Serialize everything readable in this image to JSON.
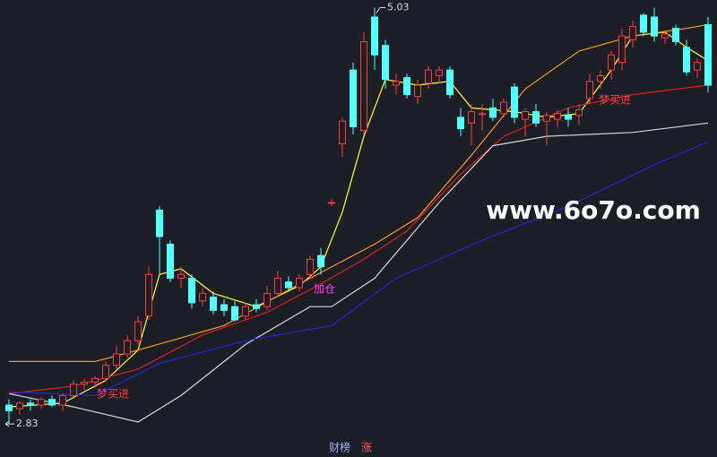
{
  "chart_data": {
    "type": "candlestick",
    "up_color": "#ff3c3c",
    "down_color": "#54ffff",
    "ylim": [
      2.75,
      5.07
    ],
    "max_label": 5.03,
    "min_label": 2.83,
    "ohlc": [
      [
        2.93,
        2.96,
        2.83,
        2.9
      ],
      [
        2.91,
        2.95,
        2.88,
        2.94
      ],
      [
        2.94,
        2.96,
        2.9,
        2.93
      ],
      [
        2.93,
        2.97,
        2.91,
        2.96
      ],
      [
        2.96,
        2.98,
        2.92,
        2.93
      ],
      [
        2.93,
        2.99,
        2.9,
        2.98
      ],
      [
        2.98,
        3.06,
        2.97,
        3.04
      ],
      [
        3.04,
        3.07,
        3.01,
        3.05
      ],
      [
        3.05,
        3.08,
        3.02,
        3.07
      ],
      [
        3.07,
        3.16,
        3.05,
        3.14
      ],
      [
        3.14,
        3.24,
        3.12,
        3.2
      ],
      [
        3.2,
        3.3,
        3.18,
        3.27
      ],
      [
        3.27,
        3.4,
        3.25,
        3.37
      ],
      [
        3.4,
        3.66,
        3.38,
        3.62
      ],
      [
        3.96,
        3.98,
        3.62,
        3.82
      ],
      [
        3.78,
        3.8,
        3.58,
        3.6
      ],
      [
        3.6,
        3.66,
        3.55,
        3.62
      ],
      [
        3.6,
        3.62,
        3.44,
        3.47
      ],
      [
        3.48,
        3.55,
        3.45,
        3.52
      ],
      [
        3.5,
        3.53,
        3.41,
        3.43
      ],
      [
        3.46,
        3.49,
        3.4,
        3.43
      ],
      [
        3.45,
        3.48,
        3.37,
        3.38
      ],
      [
        3.4,
        3.47,
        3.38,
        3.45
      ],
      [
        3.46,
        3.49,
        3.42,
        3.44
      ],
      [
        3.45,
        3.56,
        3.43,
        3.52
      ],
      [
        3.52,
        3.64,
        3.5,
        3.6
      ],
      [
        3.58,
        3.61,
        3.53,
        3.55
      ],
      [
        3.55,
        3.62,
        3.53,
        3.6
      ],
      [
        3.62,
        3.72,
        3.6,
        3.7
      ],
      [
        3.72,
        3.76,
        3.62,
        3.66
      ],
      [
        4.0,
        4.02,
        3.98,
        4.0
      ],
      [
        4.31,
        4.45,
        4.24,
        4.43
      ],
      [
        4.7,
        4.74,
        4.36,
        4.4
      ],
      [
        4.38,
        4.9,
        4.36,
        4.85
      ],
      [
        4.98,
        5.03,
        4.7,
        4.78
      ],
      [
        4.83,
        4.86,
        4.6,
        4.65
      ],
      [
        4.62,
        4.68,
        4.57,
        4.64
      ],
      [
        4.66,
        4.68,
        4.55,
        4.57
      ],
      [
        4.56,
        4.65,
        4.52,
        4.62
      ],
      [
        4.63,
        4.72,
        4.6,
        4.7
      ],
      [
        4.67,
        4.72,
        4.63,
        4.7
      ],
      [
        4.7,
        4.72,
        4.55,
        4.57
      ],
      [
        4.45,
        4.5,
        4.35,
        4.39
      ],
      [
        4.42,
        4.52,
        4.3,
        4.48
      ],
      [
        4.47,
        4.52,
        4.38,
        4.47
      ],
      [
        4.5,
        4.55,
        4.43,
        4.45
      ],
      [
        4.47,
        4.55,
        4.45,
        4.53
      ],
      [
        4.61,
        4.63,
        4.42,
        4.45
      ],
      [
        4.44,
        4.5,
        4.35,
        4.48
      ],
      [
        4.48,
        4.52,
        4.4,
        4.42
      ],
      [
        4.43,
        4.48,
        4.3,
        4.46
      ],
      [
        4.44,
        4.49,
        4.4,
        4.47
      ],
      [
        4.46,
        4.5,
        4.4,
        4.44
      ],
      [
        4.46,
        4.52,
        4.41,
        4.49
      ],
      [
        4.55,
        4.68,
        4.52,
        4.64
      ],
      [
        4.64,
        4.7,
        4.6,
        4.67
      ],
      [
        4.7,
        4.8,
        4.65,
        4.78
      ],
      [
        4.74,
        4.92,
        4.7,
        4.88
      ],
      [
        4.86,
        4.96,
        4.82,
        4.93
      ],
      [
        4.99,
        5.0,
        4.88,
        4.9
      ],
      [
        4.98,
        5.03,
        4.85,
        4.88
      ],
      [
        4.87,
        4.91,
        4.84,
        4.89
      ],
      [
        4.92,
        4.94,
        4.83,
        4.85
      ],
      [
        4.82,
        4.86,
        4.67,
        4.69
      ],
      [
        4.7,
        4.76,
        4.66,
        4.74
      ],
      [
        4.94,
        4.98,
        4.58,
        4.62
      ]
    ],
    "lines": [
      {
        "color": "#ffff40",
        "x": [
          0,
          5,
          9,
          12,
          14,
          16,
          19,
          23,
          27,
          29,
          31,
          33,
          35,
          38,
          41,
          43,
          47,
          50,
          53,
          56,
          58,
          61,
          63,
          65
        ],
        "values": [
          2.92,
          2.94,
          3.06,
          3.22,
          3.62,
          3.65,
          3.52,
          3.45,
          3.56,
          3.66,
          3.95,
          4.35,
          4.65,
          4.62,
          4.64,
          4.5,
          4.48,
          4.45,
          4.47,
          4.7,
          4.88,
          4.9,
          4.82,
          4.75
        ]
      },
      {
        "color": "#ff9a1e",
        "x": [
          0,
          8,
          12,
          20,
          28,
          34,
          38,
          43,
          48,
          53,
          58,
          63,
          65
        ],
        "values": [
          3.16,
          3.16,
          3.22,
          3.35,
          3.6,
          3.78,
          3.92,
          4.25,
          4.6,
          4.8,
          4.88,
          4.92,
          4.94
        ]
      },
      {
        "color": "#e02020",
        "x": [
          0,
          6,
          12,
          18,
          24,
          29,
          33,
          37,
          42,
          46,
          52,
          58,
          65
        ],
        "values": [
          2.99,
          3.03,
          3.12,
          3.3,
          3.42,
          3.57,
          3.7,
          3.85,
          4.15,
          4.35,
          4.5,
          4.57,
          4.62
        ]
      },
      {
        "color": "#d8d8d8",
        "x": [
          0,
          6,
          12,
          16,
          22,
          28,
          30,
          34,
          40,
          45,
          50,
          58,
          65
        ],
        "values": [
          2.99,
          2.92,
          2.84,
          2.98,
          3.25,
          3.45,
          3.45,
          3.6,
          4.0,
          4.3,
          4.35,
          4.37,
          4.42
        ]
      },
      {
        "color": "#1e2adc",
        "x": [
          0,
          8,
          14,
          22,
          30,
          36,
          44,
          52,
          60,
          65
        ],
        "values": [
          3.0,
          2.98,
          3.15,
          3.27,
          3.35,
          3.6,
          3.8,
          3.98,
          4.2,
          4.32
        ]
      }
    ],
    "annotations": [
      "梦买进",
      "加仓",
      "梦买进"
    ],
    "watermark": "www.6o7o.com",
    "footer": [
      "财榜",
      "涨"
    ]
  }
}
